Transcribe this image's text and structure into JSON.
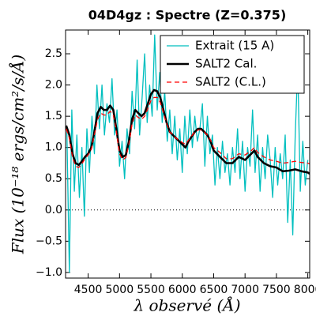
{
  "chart_data": {
    "type": "line",
    "title": "04D4gz : Spectre (Z=0.375)",
    "xlabel": "λ observé (Å)",
    "ylabel": "Flux (10⁻¹⁸ ergs/cm²/s/Å)",
    "xlim": [
      4140,
      8030
    ],
    "ylim": [
      -1.09,
      2.88
    ],
    "xticks": [
      4500,
      5000,
      5500,
      6000,
      6500,
      7000,
      7500,
      8000
    ],
    "yticks": [
      {
        "value": 2.5,
        "label": "2.5"
      },
      {
        "value": 2,
        "label": "2.0"
      },
      {
        "value": 1.5,
        "label": "1.5"
      },
      {
        "value": 1,
        "label": "1.0"
      },
      {
        "value": 0.5,
        "label": "0.5"
      },
      {
        "value": 0,
        "label": "0.0"
      },
      {
        "value": -0.5,
        "label": "−0.5"
      },
      {
        "value": -1,
        "label": "−1.0"
      }
    ],
    "hline": 0,
    "legend": "upper right",
    "series": [
      {
        "name": "Extrait (15 A)",
        "color": "#00bfbf",
        "linestyle": "solid",
        "linewidth": 1.3,
        "x": [
          4160,
          4200,
          4240,
          4280,
          4320,
          4360,
          4400,
          4440,
          4480,
          4520,
          4560,
          4600,
          4640,
          4680,
          4720,
          4760,
          4800,
          4840,
          4880,
          4920,
          4960,
          5000,
          5040,
          5080,
          5120,
          5160,
          5200,
          5240,
          5280,
          5320,
          5360,
          5400,
          5440,
          5480,
          5520,
          5560,
          5600,
          5640,
          5680,
          5720,
          5760,
          5800,
          5840,
          5880,
          5920,
          5960,
          6000,
          6040,
          6080,
          6120,
          6160,
          6200,
          6240,
          6280,
          6320,
          6360,
          6400,
          6440,
          6480,
          6520,
          6560,
          6600,
          6640,
          6680,
          6720,
          6760,
          6800,
          6840,
          6880,
          6920,
          6960,
          7000,
          7040,
          7080,
          7120,
          7160,
          7200,
          7240,
          7280,
          7320,
          7360,
          7400,
          7440,
          7480,
          7520,
          7560,
          7600,
          7640,
          7680,
          7720,
          7760,
          7800,
          7840,
          7880,
          7920,
          7960,
          8000
        ],
        "values": [
          1.3,
          -1.0,
          1.6,
          0.3,
          1.2,
          0.2,
          1.0,
          -0.1,
          1.3,
          0.6,
          1.5,
          0.9,
          2.0,
          1.3,
          2.0,
          1.2,
          1.7,
          1.4,
          2.1,
          1.2,
          1.6,
          0.7,
          1.1,
          0.5,
          1.3,
          0.9,
          1.9,
          1.3,
          2.4,
          1.2,
          1.8,
          2.5,
          1.4,
          2.0,
          1.5,
          2.8,
          1.6,
          2.2,
          1.4,
          1.9,
          1.1,
          1.6,
          0.9,
          1.5,
          0.8,
          1.3,
          0.6,
          1.5,
          0.9,
          1.6,
          1.0,
          1.5,
          1.1,
          1.3,
          1.7,
          0.7,
          1.5,
          0.9,
          1.2,
          0.4,
          1.0,
          0.5,
          1.1,
          0.6,
          0.9,
          0.4,
          1.0,
          0.6,
          1.3,
          0.5,
          1.1,
          0.3,
          1.0,
          0.7,
          1.6,
          0.6,
          1.2,
          0.3,
          1.0,
          0.5,
          1.2,
          0.8,
          0.2,
          1.0,
          0.4,
          0.9,
          0.5,
          1.2,
          -0.2,
          0.8,
          -0.4,
          1.2,
          2.3,
          0.3,
          1.1,
          0.4,
          0.8
        ]
      },
      {
        "name": "SALT2 Cal.",
        "color": "#000000",
        "linestyle": "solid",
        "linewidth": 2.6,
        "x": [
          4150,
          4200,
          4250,
          4300,
          4350,
          4400,
          4450,
          4500,
          4550,
          4600,
          4650,
          4700,
          4750,
          4800,
          4850,
          4900,
          4950,
          5000,
          5050,
          5100,
          5150,
          5200,
          5250,
          5300,
          5350,
          5400,
          5450,
          5500,
          5550,
          5600,
          5650,
          5700,
          5750,
          5800,
          5850,
          5900,
          6000,
          6050,
          6100,
          6200,
          6250,
          6300,
          6350,
          6400,
          6450,
          6500,
          6600,
          6700,
          6800,
          6900,
          7000,
          7100,
          7150,
          7200,
          7300,
          7400,
          7500,
          7600,
          7700,
          7800,
          7900,
          8000,
          8030
        ],
        "values": [
          1.35,
          1.2,
          0.9,
          0.75,
          0.72,
          0.78,
          0.85,
          0.9,
          1.0,
          1.25,
          1.55,
          1.65,
          1.6,
          1.6,
          1.67,
          1.6,
          1.3,
          0.95,
          0.85,
          0.88,
          1.1,
          1.45,
          1.6,
          1.55,
          1.5,
          1.55,
          1.7,
          1.85,
          1.92,
          1.9,
          1.8,
          1.6,
          1.4,
          1.25,
          1.2,
          1.15,
          1.05,
          1.0,
          1.1,
          1.25,
          1.3,
          1.3,
          1.25,
          1.2,
          1.1,
          0.95,
          0.85,
          0.75,
          0.75,
          0.85,
          0.8,
          0.9,
          0.95,
          0.85,
          0.75,
          0.7,
          0.68,
          0.62,
          0.63,
          0.65,
          0.62,
          0.6,
          0.58
        ]
      },
      {
        "name": "SALT2 (C.L.)",
        "color": "#ff0000",
        "linestyle": "dashed",
        "linewidth": 1.3,
        "x": [
          4150,
          4200,
          4250,
          4300,
          4350,
          4400,
          4450,
          4500,
          4550,
          4600,
          4650,
          4700,
          4750,
          4800,
          4850,
          4900,
          4950,
          5000,
          5050,
          5100,
          5150,
          5200,
          5250,
          5300,
          5350,
          5400,
          5450,
          5500,
          5550,
          5600,
          5650,
          5700,
          5750,
          5800,
          5850,
          5900,
          6000,
          6050,
          6100,
          6200,
          6250,
          6300,
          6350,
          6400,
          6450,
          6500,
          6600,
          6700,
          6800,
          6900,
          7000,
          7100,
          7150,
          7200,
          7300,
          7400,
          7500,
          7600,
          7700,
          7800,
          7900,
          8000,
          8030
        ],
        "values": [
          1.3,
          1.15,
          0.85,
          0.7,
          0.68,
          0.74,
          0.82,
          0.88,
          0.97,
          1.2,
          1.45,
          1.55,
          1.52,
          1.52,
          1.58,
          1.52,
          1.25,
          0.9,
          0.8,
          0.84,
          1.05,
          1.38,
          1.52,
          1.48,
          1.45,
          1.5,
          1.62,
          1.75,
          1.8,
          1.8,
          1.72,
          1.55,
          1.38,
          1.25,
          1.2,
          1.15,
          1.08,
          1.05,
          1.12,
          1.25,
          1.28,
          1.28,
          1.25,
          1.2,
          1.12,
          1.0,
          0.92,
          0.82,
          0.82,
          0.9,
          0.88,
          0.95,
          1.0,
          0.92,
          0.85,
          0.8,
          0.78,
          0.75,
          0.76,
          0.78,
          0.76,
          0.75,
          0.74
        ]
      }
    ]
  }
}
